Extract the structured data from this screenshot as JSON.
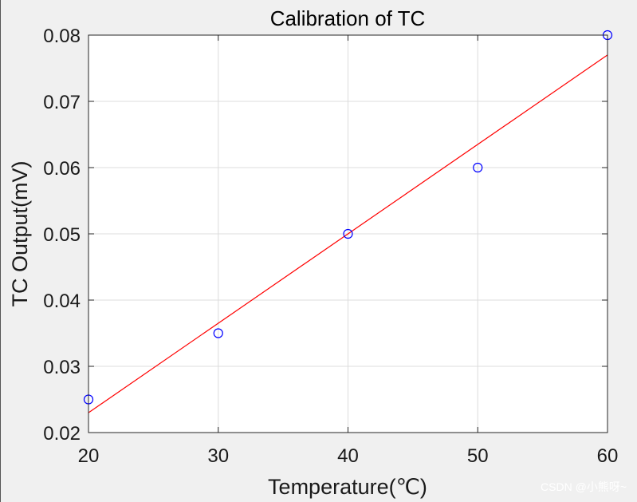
{
  "chart_data": {
    "type": "scatter",
    "title": "Calibration of TC",
    "xlabel": "Temperature(℃)",
    "ylabel": "TC Output(mV)",
    "xlim": [
      20,
      60
    ],
    "ylim": [
      0.02,
      0.08
    ],
    "xticks": [
      20,
      30,
      40,
      50,
      60
    ],
    "yticks": [
      0.02,
      0.03,
      0.04,
      0.05,
      0.06,
      0.07,
      0.08
    ],
    "xtick_labels": [
      "20",
      "30",
      "40",
      "50",
      "60"
    ],
    "ytick_labels": [
      "0.02",
      "0.03",
      "0.04",
      "0.05",
      "0.06",
      "0.07",
      "0.08"
    ],
    "grid": true,
    "series": [
      {
        "kind": "scatter",
        "marker": "circle",
        "color": "#0000ff",
        "x": [
          20,
          30,
          40,
          50,
          60
        ],
        "y": [
          0.025,
          0.035,
          0.05,
          0.06,
          0.08
        ]
      },
      {
        "kind": "fit-line",
        "color": "#ff0000",
        "x": [
          20,
          60
        ],
        "y": [
          0.023,
          0.077
        ]
      }
    ]
  },
  "watermark": "CSDN @小熊呀~"
}
